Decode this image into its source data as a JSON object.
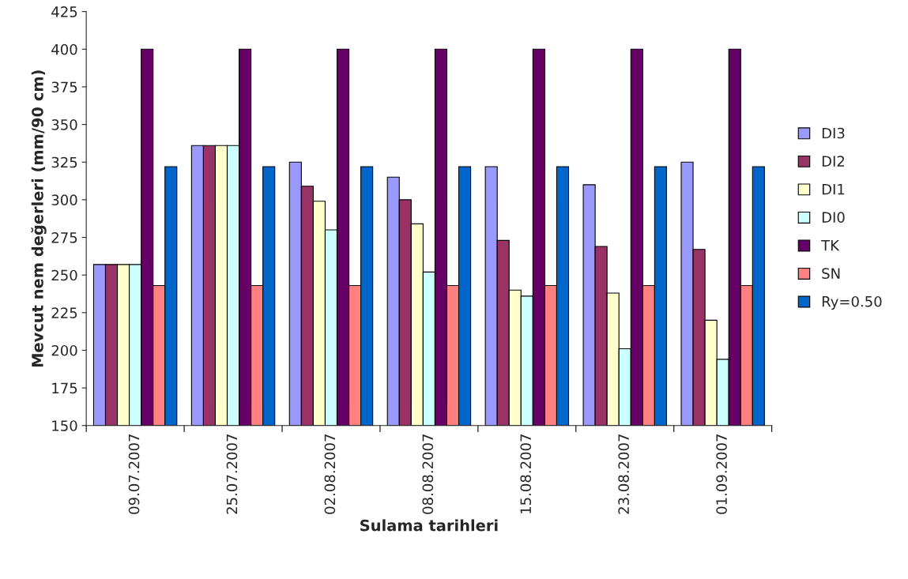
{
  "chart_data": {
    "type": "bar",
    "xlabel": "Sulama tarihleri",
    "ylabel": "Mevcut nem değerleri (mm/90 cm)",
    "categories": [
      "09.07.2007",
      "25.07.2007",
      "02.08.2007",
      "08.08.2007",
      "15.08.2007",
      "23.08.2007",
      "01.09.2007"
    ],
    "series": [
      {
        "name": "DI3",
        "color": "#9999ff",
        "values": [
          257,
          336,
          325,
          315,
          322,
          310,
          325
        ]
      },
      {
        "name": "DI2",
        "color": "#993366",
        "values": [
          257,
          336,
          309,
          300,
          273,
          269,
          267
        ]
      },
      {
        "name": "DI1",
        "color": "#ffffcc",
        "values": [
          257,
          336,
          299,
          284,
          240,
          238,
          220
        ]
      },
      {
        "name": "DI0",
        "color": "#ccffff",
        "values": [
          257,
          336,
          280,
          252,
          236,
          201,
          194
        ]
      },
      {
        "name": "TK",
        "color": "#660066",
        "values": [
          400,
          400,
          400,
          400,
          400,
          400,
          400
        ]
      },
      {
        "name": "SN",
        "color": "#ff8080",
        "values": [
          243,
          243,
          243,
          243,
          243,
          243,
          243
        ]
      },
      {
        "name": "Ry=0.50",
        "color": "#0066cc",
        "values": [
          322,
          322,
          322,
          322,
          322,
          322,
          322
        ]
      }
    ],
    "ylim": [
      150,
      425
    ],
    "yticks": [
      150,
      175,
      200,
      225,
      250,
      275,
      300,
      325,
      350,
      375,
      400,
      425
    ],
    "grid": false,
    "legend": "right"
  }
}
